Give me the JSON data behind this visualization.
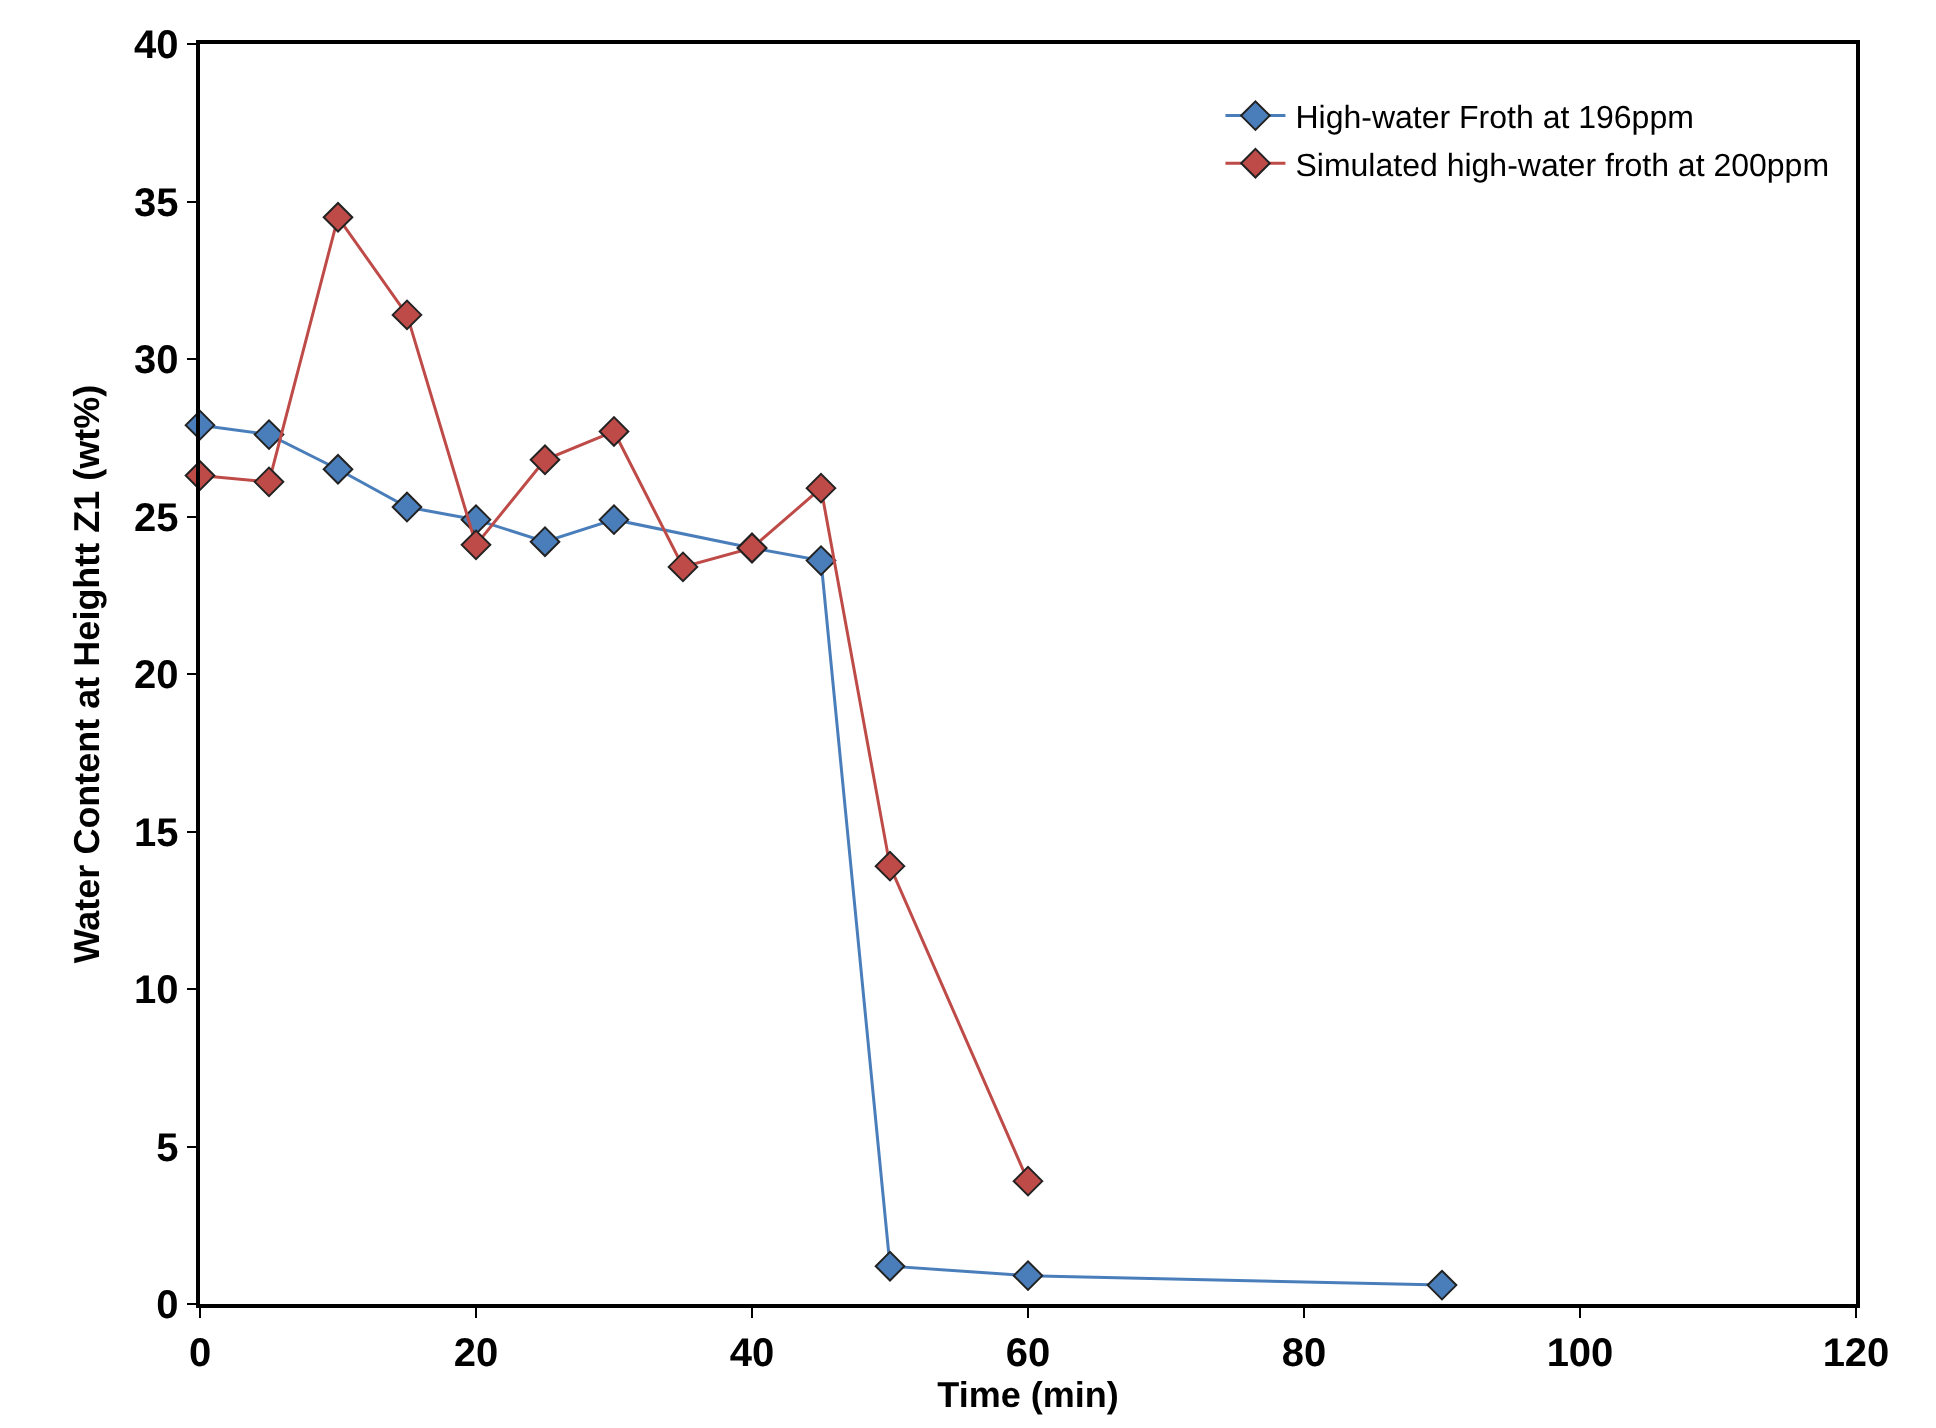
{
  "chart_data": {
    "type": "line",
    "xlabel": "Time (min)",
    "ylabel": "Water Content at Heightt Z1 (wt%)",
    "xlim": [
      0,
      120
    ],
    "xticks": [
      0,
      20,
      40,
      60,
      80,
      100,
      120
    ],
    "ylim": [
      0,
      40
    ],
    "yticks": [
      0,
      5,
      10,
      15,
      20,
      25,
      30,
      35,
      40
    ],
    "legend": "top right",
    "marker": "diamond",
    "line_style": "solid",
    "series": [
      {
        "name": "High-water Froth at 196ppm",
        "color": "#4a7ebb",
        "x": [
          0,
          5,
          10,
          15,
          20,
          25,
          30,
          40,
          45,
          50,
          60,
          90
        ],
        "values": [
          27.9,
          27.6,
          26.5,
          25.3,
          24.9,
          24.2,
          24.9,
          24.0,
          23.6,
          1.2,
          0.9,
          0.6
        ]
      },
      {
        "name": "Simulated high-water froth at 200ppm",
        "color": "#be4b48",
        "x": [
          0,
          5,
          10,
          15,
          20,
          25,
          30,
          35,
          40,
          45,
          50,
          60
        ],
        "values": [
          26.3,
          26.1,
          34.5,
          31.4,
          24.1,
          26.8,
          27.7,
          23.4,
          24.0,
          25.9,
          13.9,
          3.9
        ]
      }
    ]
  }
}
